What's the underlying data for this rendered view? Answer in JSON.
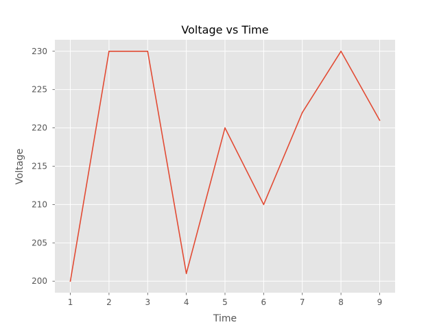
{
  "chart_data": {
    "type": "line",
    "title": "Voltage vs Time",
    "xlabel": "Time",
    "ylabel": "Voltage",
    "x": [
      1,
      2,
      3,
      4,
      5,
      6,
      7,
      8,
      9
    ],
    "series": [
      {
        "values": [
          200,
          230,
          230,
          201,
          220,
          210,
          222,
          230,
          221
        ]
      }
    ],
    "xlim": [
      0.6,
      9.4
    ],
    "ylim": [
      198.5,
      231.5
    ],
    "xticks": [
      "1",
      "2",
      "3",
      "4",
      "5",
      "6",
      "7",
      "8",
      "9"
    ],
    "yticks": [
      "200",
      "205",
      "210",
      "215",
      "220",
      "225",
      "230"
    ],
    "grid": true,
    "colors": {
      "plot_background": "#E5E5E5",
      "grid": "#FFFFFF",
      "line": "#E24A33",
      "tick_marks": "#555555"
    }
  }
}
